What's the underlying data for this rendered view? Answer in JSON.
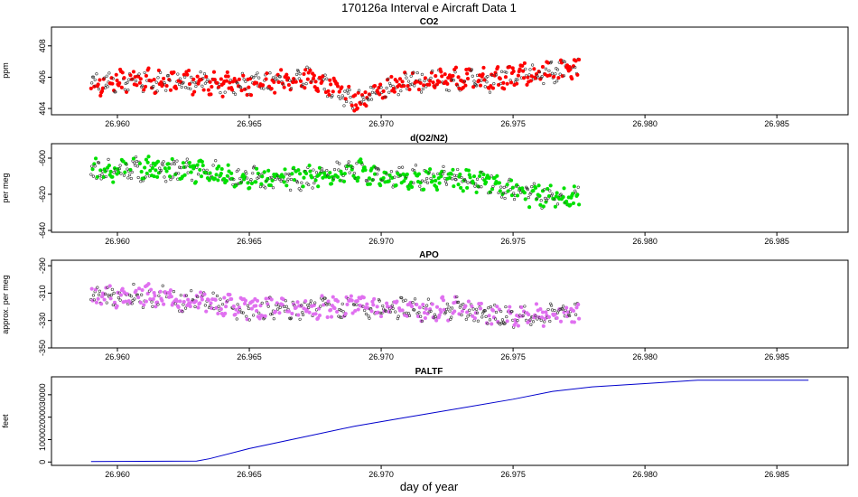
{
  "figure": {
    "title": "170126a   Interval e Aircraft Data 1",
    "xlabel": "day of year"
  },
  "colors": {
    "co2": "#ff0000",
    "o2n2": "#00e000",
    "apo": "#e070f0",
    "paltf": "#0000cc",
    "point_outline": "#333333"
  },
  "chart_data": [
    {
      "type": "scatter",
      "key": "co2",
      "title": "CO2",
      "ylabel": "ppm",
      "xlim": [
        26.9575,
        26.9877
      ],
      "ylim": [
        403.6,
        409.2
      ],
      "xticks": [
        26.96,
        26.965,
        26.97,
        26.975,
        26.98,
        26.985
      ],
      "yticks": [
        404,
        406,
        408
      ],
      "data_x_range": [
        26.959,
        26.9775
      ],
      "series": [
        {
          "name": "CO2",
          "trend": [
            [
              26.959,
              405.6
            ],
            [
              26.961,
              405.8
            ],
            [
              26.963,
              405.6
            ],
            [
              26.965,
              405.5
            ],
            [
              26.967,
              406.0
            ],
            [
              26.968,
              405.5
            ],
            [
              26.969,
              404.5
            ],
            [
              26.9705,
              405.5
            ],
            [
              26.972,
              405.9
            ],
            [
              26.974,
              405.8
            ],
            [
              26.976,
              406.3
            ],
            [
              26.9775,
              406.5
            ]
          ]
        }
      ]
    },
    {
      "type": "scatter",
      "key": "o2n2",
      "title": "d(O2/N2)",
      "ylabel": "per meg",
      "xlim": [
        26.9575,
        26.9877
      ],
      "ylim": [
        -641,
        -592
      ],
      "xticks": [
        26.96,
        26.965,
        26.97,
        26.975,
        26.98,
        26.985
      ],
      "yticks": [
        -640,
        -620,
        -600
      ],
      "data_x_range": [
        26.959,
        26.9775
      ],
      "series": [
        {
          "name": "d(O2/N2)",
          "trend": [
            [
              26.959,
              -607
            ],
            [
              26.961,
              -606
            ],
            [
              26.963,
              -607
            ],
            [
              26.965,
              -611
            ],
            [
              26.967,
              -612
            ],
            [
              26.969,
              -606
            ],
            [
              26.97,
              -610
            ],
            [
              26.972,
              -611
            ],
            [
              26.974,
              -613
            ],
            [
              26.9755,
              -620
            ],
            [
              26.9775,
              -622
            ]
          ]
        }
      ]
    },
    {
      "type": "scatter",
      "key": "apo",
      "title": "APO",
      "ylabel": "approx. per meg",
      "xlim": [
        26.9575,
        26.9877
      ],
      "ylim": [
        -350,
        -286
      ],
      "xticks": [
        26.96,
        26.965,
        26.97,
        26.975,
        26.98,
        26.985
      ],
      "yticks": [
        -350,
        -330,
        -310,
        -290
      ],
      "data_x_range": [
        26.959,
        26.9775
      ],
      "series": [
        {
          "name": "APO",
          "trend": [
            [
              26.959,
              -313
            ],
            [
              26.961,
              -312
            ],
            [
              26.963,
              -316
            ],
            [
              26.965,
              -322
            ],
            [
              26.967,
              -321
            ],
            [
              26.969,
              -320
            ],
            [
              26.971,
              -321
            ],
            [
              26.973,
              -322
            ],
            [
              26.975,
              -327
            ],
            [
              26.9775,
              -326
            ]
          ]
        }
      ]
    },
    {
      "type": "line",
      "key": "paltf",
      "title": "PALTF",
      "ylabel": "feet",
      "xlim": [
        26.9575,
        26.9877
      ],
      "ylim": [
        -1500,
        38000
      ],
      "xticks": [
        26.96,
        26.965,
        26.97,
        26.975,
        26.98,
        26.985
      ],
      "yticks": [
        0,
        10000,
        20000,
        30000
      ],
      "series": [
        {
          "name": "PALTF",
          "x": [
            26.959,
            26.963,
            26.9635,
            26.965,
            26.967,
            26.969,
            26.971,
            26.973,
            26.975,
            26.9765,
            26.978,
            26.98,
            26.982,
            26.9862
          ],
          "y": [
            200,
            400,
            1500,
            6000,
            11000,
            16000,
            20000,
            24000,
            28000,
            31500,
            33500,
            35000,
            36500,
            36500
          ]
        }
      ]
    }
  ]
}
